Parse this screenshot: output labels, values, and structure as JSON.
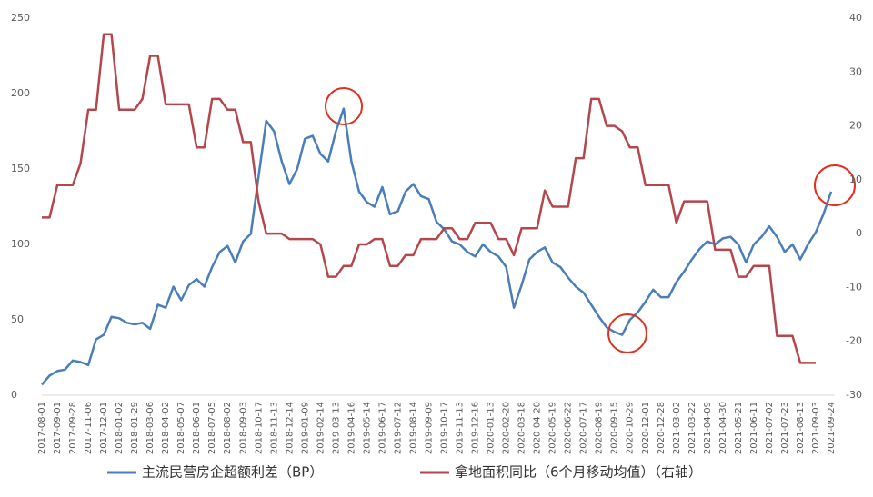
{
  "chart_data": {
    "type": "line",
    "categories": [
      "2017-08-01",
      null,
      "2017-09-01",
      null,
      "2017-09-28",
      null,
      "2017-11-06",
      null,
      "2017-12-01",
      null,
      "2018-01-02",
      null,
      "2018-01-29",
      null,
      "2018-03-06",
      null,
      "2018-04-02",
      null,
      "2018-05-07",
      null,
      "2018-06-01",
      null,
      "2018-07-05",
      null,
      "2018-08-02",
      null,
      "2018-09-03",
      null,
      "2018-10-17",
      null,
      "2018-11-13",
      null,
      "2018-12-14",
      null,
      "2019-01-09",
      null,
      "2019-02-14",
      null,
      "2019-03-13",
      null,
      "2019-04-16",
      null,
      "2019-05-14",
      null,
      "2019-06-17",
      null,
      "2019-07-12",
      null,
      "2019-08-14",
      null,
      "2019-09-09",
      null,
      "2019-10-17",
      null,
      "2019-11-13",
      null,
      "2019-12-16",
      null,
      "2020-01-13",
      null,
      "2020-02-20",
      null,
      "2020-03-18",
      null,
      "2020-04-20",
      null,
      "2020-05-19",
      null,
      "2020-06-22",
      null,
      "2020-07-17",
      null,
      "2020-08-19",
      null,
      "2020-09-15",
      null,
      "2020-10-29",
      null,
      "2020-12-01",
      null,
      "2020-12-28",
      null,
      "2021-03-02",
      null,
      "2021-03-22",
      null,
      "2021-04-09",
      null,
      "2021-04-30",
      null,
      "2021-05-21",
      null,
      "2021-06-11",
      null,
      "2021-07-02",
      null,
      "2021-07-23",
      null,
      "2021-08-13",
      null,
      "2021-09-03",
      null,
      "2021-09-24"
    ],
    "series": [
      {
        "name": "主流民营房企超额利差（BP）",
        "color": "#4a7ebb",
        "axis": "y",
        "values": [
          7,
          13,
          16,
          17,
          23,
          22,
          20,
          37,
          40,
          52,
          51,
          48,
          47,
          48,
          44,
          60,
          58,
          72,
          63,
          73,
          77,
          72,
          85,
          95,
          99,
          88,
          102,
          107,
          145,
          182,
          175,
          155,
          140,
          150,
          170,
          172,
          160,
          155,
          175,
          190,
          155,
          135,
          128,
          125,
          138,
          120,
          122,
          135,
          140,
          132,
          130,
          115,
          110,
          102,
          100,
          95,
          92,
          100,
          95,
          92,
          85,
          58,
          73,
          90,
          95,
          98,
          88,
          85,
          78,
          72,
          68,
          60,
          52,
          45,
          42,
          40,
          50,
          55,
          62,
          70,
          65,
          65,
          75,
          82,
          90,
          97,
          102,
          100,
          104,
          105,
          100,
          88,
          100,
          105,
          112,
          105,
          95,
          100,
          90,
          100,
          108,
          120,
          135
        ]
      },
      {
        "name": "拿地面积同比（6个月移动均值）（右轴）",
        "color": "#b5464b",
        "axis": "y2",
        "values": [
          3,
          3,
          9,
          9,
          9,
          13,
          23,
          23,
          37,
          37,
          23,
          23,
          23,
          25,
          33,
          33,
          24,
          24,
          24,
          24,
          16,
          16,
          25,
          25,
          23,
          23,
          17,
          17,
          6,
          0,
          0,
          0,
          -1,
          -1,
          -1,
          -1,
          -2,
          -8,
          -8,
          -6,
          -6,
          -2,
          -2,
          -1,
          -1,
          -6,
          -6,
          -4,
          -4,
          -1,
          -1,
          -1,
          1,
          1,
          -1,
          -1,
          2,
          2,
          2,
          -1,
          -1,
          -4,
          1,
          1,
          1,
          8,
          5,
          5,
          5,
          14,
          14,
          25,
          25,
          20,
          20,
          19,
          16,
          16,
          9,
          9,
          9,
          9,
          2,
          6,
          6,
          6,
          6,
          -3,
          -3,
          -3,
          -8,
          -8,
          -6,
          -6,
          -6,
          -19,
          -19,
          -19,
          -24,
          -24,
          -24,
          null,
          null
        ]
      }
    ],
    "ylim": [
      0,
      250
    ],
    "yticks": [
      0,
      50,
      100,
      150,
      200,
      250
    ],
    "y2lim": [
      -30,
      40
    ],
    "y2ticks": [
      -30,
      -20,
      -10,
      0,
      10,
      20,
      30,
      40
    ],
    "grid": false
  }
}
